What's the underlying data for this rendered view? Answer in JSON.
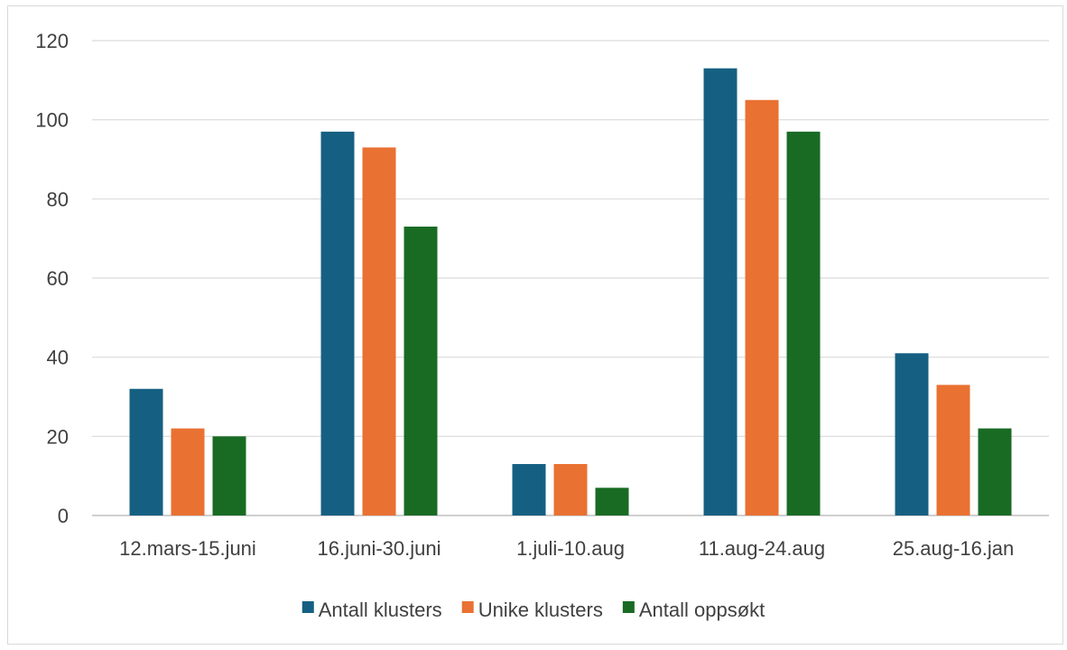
{
  "chart_data": {
    "type": "bar",
    "categories": [
      "12.mars-15.juni",
      "16.juni-30.juni",
      "1.juli-10.aug",
      "11.aug-24.aug",
      "25.aug-16.jan"
    ],
    "series": [
      {
        "name": "Antall klusters",
        "color": "#156082",
        "values": [
          32,
          97,
          13,
          113,
          41
        ]
      },
      {
        "name": "Unike klusters",
        "color": "#E97132",
        "values": [
          22,
          93,
          13,
          105,
          33
        ]
      },
      {
        "name": "Antall oppsøkt",
        "color": "#196B24",
        "values": [
          20,
          73,
          7,
          97,
          22
        ]
      }
    ],
    "ylim": [
      0,
      120
    ],
    "yticks": [
      0,
      20,
      40,
      60,
      80,
      100,
      120
    ],
    "grid": true,
    "legend_position": "bottom",
    "title": "",
    "xlabel": "",
    "ylabel": ""
  }
}
